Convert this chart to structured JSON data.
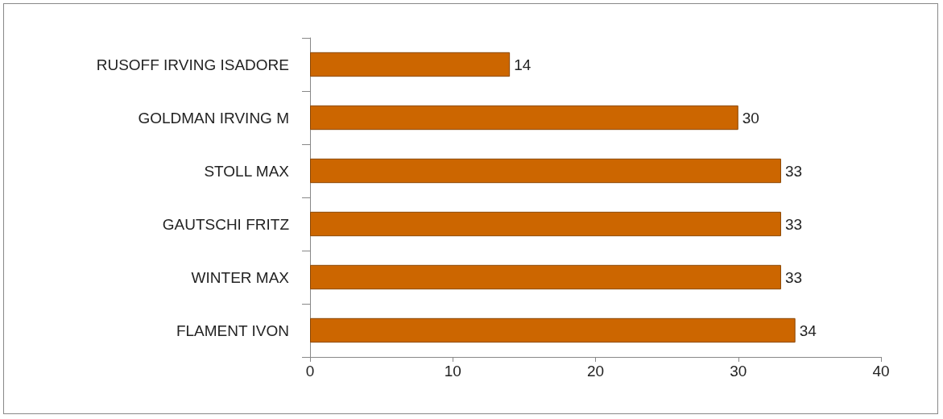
{
  "chart_data": {
    "type": "bar",
    "orientation": "horizontal",
    "categories": [
      "RUSOFF IRVING ISADORE",
      "GOLDMAN IRVING M",
      "STOLL MAX",
      "GAUTSCHI FRITZ",
      "WINTER MAX",
      "FLAMENT IVON"
    ],
    "values": [
      14,
      30,
      33,
      33,
      33,
      34
    ],
    "color": "#cc6600",
    "xlim": [
      0,
      40
    ],
    "xticks": [
      0,
      10,
      20,
      30,
      40
    ],
    "grid": false,
    "data_labels": true
  }
}
